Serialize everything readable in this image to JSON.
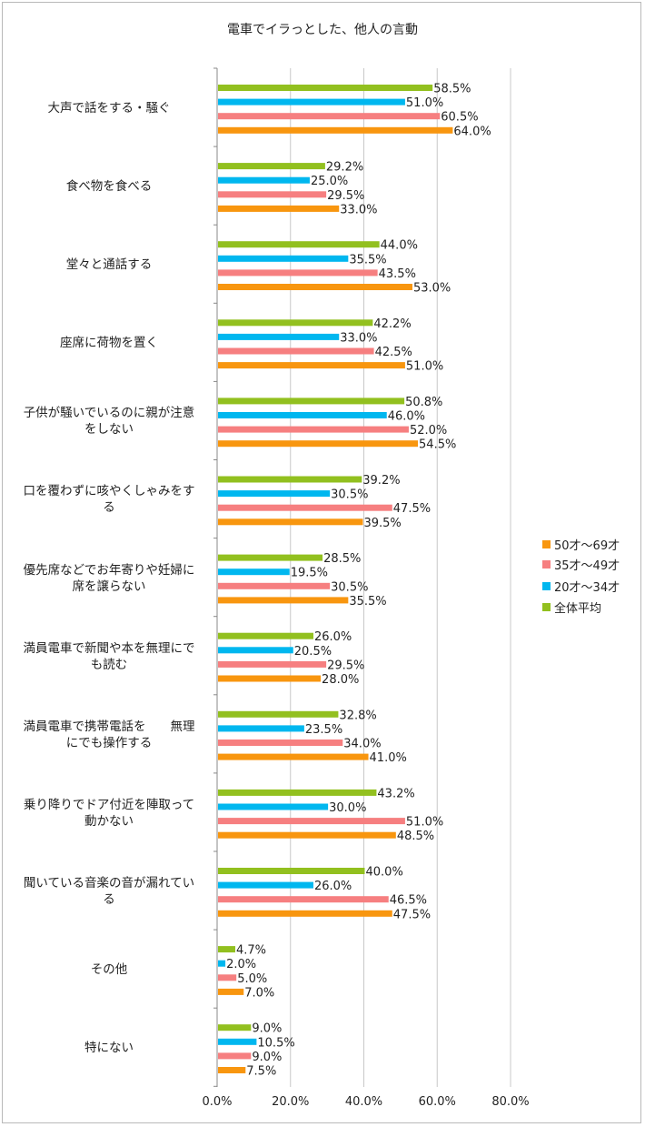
{
  "chart_data": {
    "type": "bar",
    "orientation": "horizontal",
    "title": "電車でイラっとした、他人の言動",
    "xlim": [
      0,
      80
    ],
    "x_ticks": [
      "0.0%",
      "20.0%",
      "40.0%",
      "60.0%",
      "80.0%"
    ],
    "grid": "vertical",
    "legend_position": "right",
    "categories": [
      {
        "label": "大声で話をする・騒ぐ",
        "lines": [
          "大声で話をする・騒ぐ"
        ]
      },
      {
        "label": "食べ物を食べる",
        "lines": [
          "食べ物を食べる"
        ]
      },
      {
        "label": "堂々と通話する",
        "lines": [
          "堂々と通話する"
        ]
      },
      {
        "label": "座席に荷物を置く",
        "lines": [
          "座席に荷物を置く"
        ]
      },
      {
        "label": "子供が騒いでいるのに親が注意をしない",
        "lines": [
          "子供が騒いでいるのに親が注意",
          "をしない"
        ]
      },
      {
        "label": "口を覆わずに咳やくしゃみをする",
        "lines": [
          "口を覆わずに咳やくしゃみをす",
          "る"
        ]
      },
      {
        "label": "優先席などでお年寄りや妊婦に席を譲らない",
        "lines": [
          "優先席などでお年寄りや妊婦に",
          "席を譲らない"
        ]
      },
      {
        "label": "満員電車で新聞や本を無理にでも読む",
        "lines": [
          "満員電車で新聞や本を無理にで",
          "も読む"
        ]
      },
      {
        "label": "満員電車で携帯電話を 無理にでも操作する",
        "lines": [
          "満員電車で携帯電話を　　無理",
          "にでも操作する"
        ]
      },
      {
        "label": "乗り降りでドア付近を陣取って動かない",
        "lines": [
          "乗り降りでドア付近を陣取って",
          "動かない"
        ]
      },
      {
        "label": "聞いている音楽の音が漏れている",
        "lines": [
          "聞いている音楽の音が漏れてい",
          "る"
        ]
      },
      {
        "label": "その他",
        "lines": [
          "その他"
        ]
      },
      {
        "label": "特にない",
        "lines": [
          "特にない"
        ]
      }
    ],
    "series": [
      {
        "name": "全体平均",
        "color": "#92c01f",
        "values": [
          58.5,
          29.2,
          44.0,
          42.2,
          50.8,
          39.2,
          28.5,
          26.0,
          32.8,
          43.2,
          40.0,
          4.7,
          9.0
        ]
      },
      {
        "name": "20才～34才",
        "color": "#00b7ef",
        "values": [
          51.0,
          25.0,
          35.5,
          33.0,
          46.0,
          30.5,
          19.5,
          20.5,
          23.5,
          30.0,
          26.0,
          2.0,
          10.5
        ]
      },
      {
        "name": "35才～49才",
        "color": "#f67f80",
        "values": [
          60.5,
          29.5,
          43.5,
          42.5,
          52.0,
          47.5,
          30.5,
          29.5,
          34.0,
          51.0,
          46.5,
          5.0,
          9.0
        ]
      },
      {
        "name": "50才～69才",
        "color": "#f8960f",
        "values": [
          64.0,
          33.0,
          53.0,
          51.0,
          54.5,
          39.5,
          35.5,
          28.0,
          41.0,
          48.5,
          47.5,
          7.0,
          7.5
        ]
      }
    ],
    "legend_order": [
      "50才～69才",
      "35才～49才",
      "20才～34才",
      "全体平均"
    ],
    "value_format": "0.0%"
  }
}
